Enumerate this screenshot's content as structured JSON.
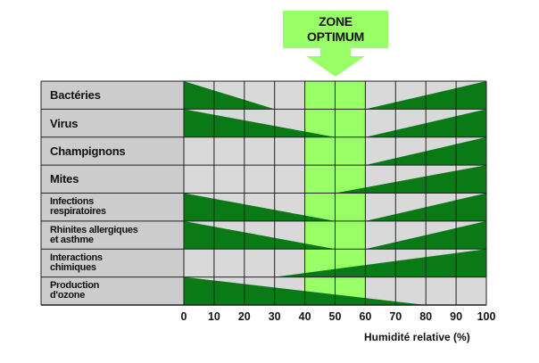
{
  "zone": {
    "line1": "ZONE",
    "line2": "OPTIMUM",
    "x_start": 40,
    "x_end": 60,
    "color": "#99ff66"
  },
  "xaxis": {
    "label": "Humidité relative (%)",
    "min": 0,
    "max": 100,
    "ticks": [
      "0",
      "10",
      "20",
      "30",
      "40",
      "50",
      "60",
      "70",
      "80",
      "90",
      "100"
    ]
  },
  "colors": {
    "wedge": "#0a7a17",
    "cell": "#d9d9d9",
    "label_bg": "#cccccc",
    "grid": "#222222",
    "arrow": "#99ff66"
  },
  "rows": [
    {
      "label": "Bactéries",
      "style": "big",
      "segments": [
        {
          "from": 0,
          "to": 30,
          "side": "left"
        },
        {
          "from": 60,
          "to": 100,
          "side": "right"
        }
      ]
    },
    {
      "label": "Virus",
      "style": "big",
      "segments": [
        {
          "from": 0,
          "to": 50,
          "side": "left"
        },
        {
          "from": 60,
          "to": 100,
          "side": "right"
        }
      ]
    },
    {
      "label": "Champignons",
      "style": "big",
      "segments": [
        {
          "from": 60,
          "to": 100,
          "side": "right"
        }
      ]
    },
    {
      "label": "Mites",
      "style": "big",
      "segments": [
        {
          "from": 50,
          "to": 100,
          "side": "right"
        }
      ]
    },
    {
      "label": "Infections\nrespiratoires",
      "style": "small",
      "segments": [
        {
          "from": 0,
          "to": 50,
          "side": "left"
        },
        {
          "from": 60,
          "to": 100,
          "side": "right"
        }
      ]
    },
    {
      "label": "Rhinites allergiques\net asthme",
      "style": "small",
      "segments": [
        {
          "from": 0,
          "to": 50,
          "side": "left"
        },
        {
          "from": 60,
          "to": 100,
          "side": "right"
        }
      ]
    },
    {
      "label": "Interactions\nchimiques",
      "style": "small",
      "segments": [
        {
          "from": 30,
          "to": 100,
          "side": "right"
        }
      ]
    },
    {
      "label": "Production\nd'ozone",
      "style": "small",
      "segments": [
        {
          "from": 0,
          "to": 80,
          "side": "left"
        }
      ]
    }
  ]
}
